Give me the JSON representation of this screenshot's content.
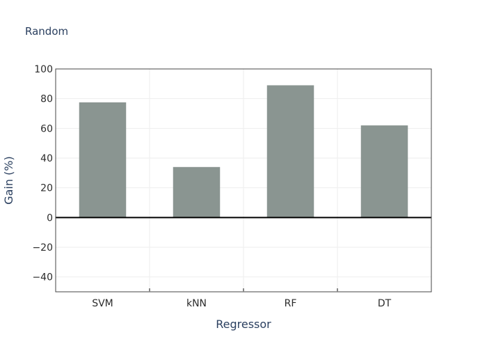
{
  "chart_data": {
    "type": "bar",
    "title": "Random",
    "xlabel": "Regressor",
    "ylabel": "Gain (%)",
    "categories": [
      "SVM",
      "kNN",
      "RF",
      "DT"
    ],
    "values": [
      77.5,
      34,
      89,
      62
    ],
    "ylim": [
      -50,
      100
    ],
    "yticks": [
      100,
      80,
      60,
      40,
      20,
      0,
      -20,
      -40
    ],
    "ytick_labels": [
      "100",
      "80",
      "60",
      "40",
      "20",
      "0",
      "−20",
      "−40"
    ],
    "grid": true,
    "bar_color": "#8a9591",
    "zero_line_color": "#000000"
  }
}
